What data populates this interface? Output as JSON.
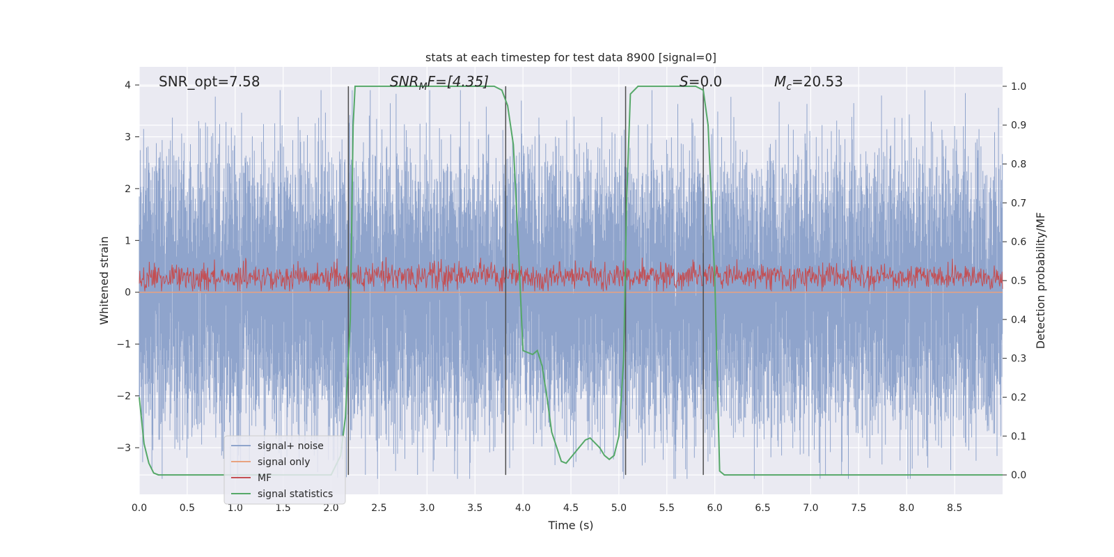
{
  "chart_data": {
    "type": "line",
    "title": "stats at each timestep for test data 8900 [signal=0]",
    "xlabel": "Time (s)",
    "ylabel": "Whitened strain",
    "y2label": "Detection probability/MF",
    "xlim": [
      0,
      9.0
    ],
    "ylim": [
      -3.9,
      4.35
    ],
    "y2lim": [
      -0.05,
      1.05
    ],
    "xticks": [
      0.0,
      0.5,
      1.0,
      1.5,
      2.0,
      2.5,
      3.0,
      3.5,
      4.0,
      4.5,
      5.0,
      5.5,
      6.0,
      6.5,
      7.0,
      7.5,
      8.0,
      8.5
    ],
    "yticks": [
      4,
      3,
      2,
      1,
      0,
      -1,
      -2,
      -3
    ],
    "y2ticks": [
      1.0,
      0.9,
      0.8,
      0.7,
      0.6,
      0.5,
      0.4,
      0.3,
      0.2,
      0.1,
      0.0
    ],
    "grid": true,
    "legend_position": "lower-left",
    "annotations": [
      {
        "id": "snr-opt",
        "text": "SNR_opt=7.58"
      },
      {
        "id": "snr-mf",
        "text": "SNR_MF=[4.35]",
        "base": "SNR",
        "sub": "M",
        "rest": "F=[4.35]"
      },
      {
        "id": "s-value",
        "text": "S=0.0",
        "base": "S",
        "rest": "=0.0"
      },
      {
        "id": "mc-value",
        "text": "M_c=20.53",
        "base": "M",
        "sub": "c",
        "rest": "=20.53"
      }
    ],
    "vlines": [
      2.18,
      3.82,
      5.07,
      5.88
    ],
    "series": [
      {
        "name": "signal+ noise",
        "color": "#8fa4cc",
        "axis": "left",
        "kind": "noise",
        "y_range_typical": [
          -2.3,
          2.3
        ],
        "y_extreme": [
          -3.6,
          3.9
        ]
      },
      {
        "name": "signal only",
        "color": "#e8a27f",
        "axis": "left",
        "x": [
          0.0,
          9.0
        ],
        "y": [
          0.0,
          0.0
        ]
      },
      {
        "name": "MF",
        "color": "#c44e52",
        "axis": "left",
        "kind": "noise",
        "y_range_typical": [
          0.0,
          0.6
        ]
      },
      {
        "name": "signal statistics",
        "color": "#55a868",
        "axis": "right",
        "x": [
          0.0,
          0.05,
          0.1,
          0.15,
          0.2,
          0.3,
          1.0,
          2.0,
          2.1,
          2.15,
          2.2,
          2.23,
          2.25,
          3.0,
          3.7,
          3.78,
          3.84,
          3.9,
          3.95,
          4.0,
          4.1,
          4.15,
          4.2,
          4.25,
          4.3,
          4.4,
          4.45,
          4.55,
          4.65,
          4.7,
          4.8,
          4.85,
          4.9,
          4.95,
          5.0,
          5.05,
          5.08,
          5.12,
          5.2,
          5.3,
          5.8,
          5.88,
          5.93,
          6.0,
          6.05,
          6.1,
          9.0
        ],
        "y": [
          0.2,
          0.08,
          0.03,
          0.005,
          0.0,
          0.0,
          0.0,
          0.0,
          0.05,
          0.15,
          0.4,
          0.9,
          1.0,
          1.0,
          1.0,
          0.99,
          0.95,
          0.85,
          0.6,
          0.32,
          0.31,
          0.32,
          0.28,
          0.2,
          0.11,
          0.035,
          0.03,
          0.06,
          0.09,
          0.095,
          0.07,
          0.05,
          0.04,
          0.05,
          0.1,
          0.3,
          0.7,
          0.98,
          1.0,
          1.0,
          1.0,
          0.99,
          0.9,
          0.5,
          0.01,
          0.0,
          0.0
        ]
      }
    ]
  }
}
